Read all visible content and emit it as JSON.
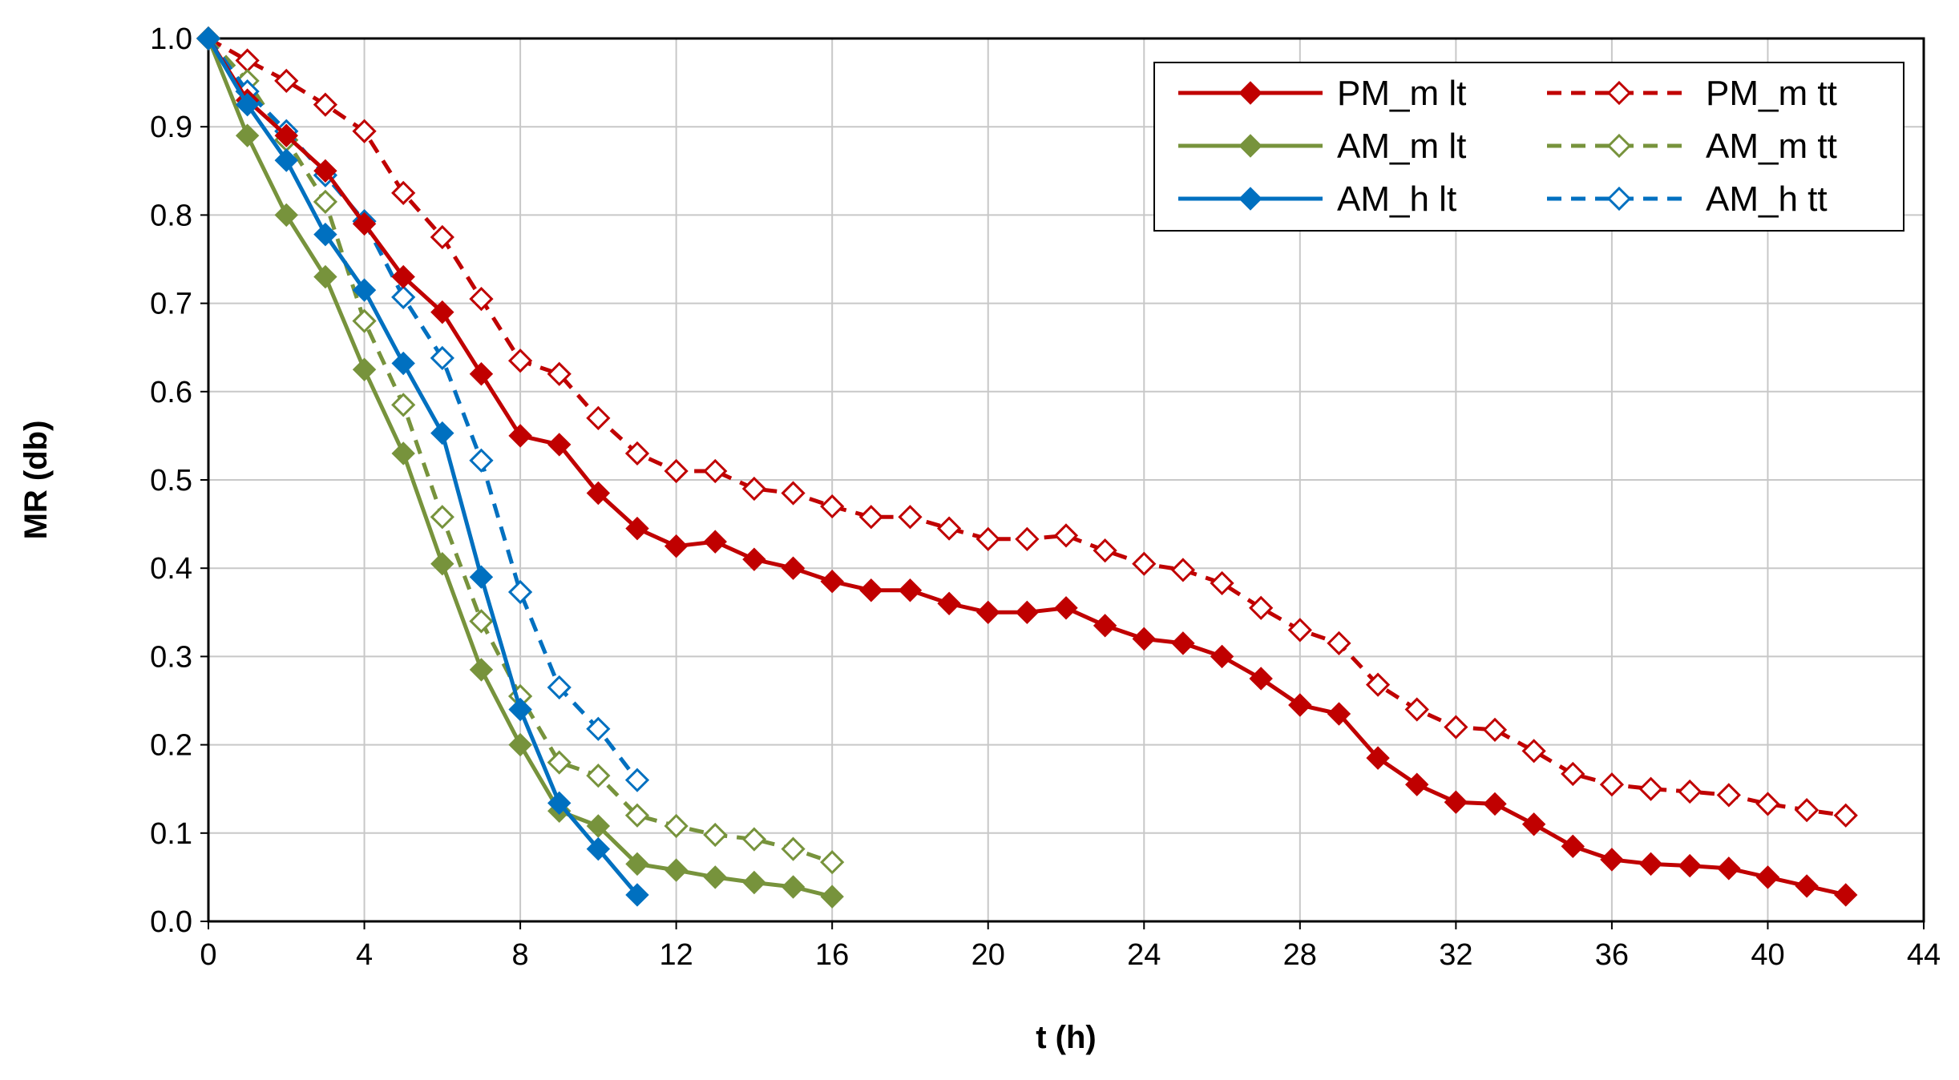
{
  "chart_data": {
    "type": "line",
    "title": "",
    "xlabel": "t (h)",
    "ylabel": "MR (db)",
    "xlim": [
      0,
      44
    ],
    "ylim": [
      0,
      1.0
    ],
    "xticks": [
      "0",
      "4",
      "8",
      "12",
      "16",
      "20",
      "24",
      "28",
      "32",
      "36",
      "40",
      "44"
    ],
    "yticks": [
      "0.0",
      "0.1",
      "0.2",
      "0.3",
      "0.4",
      "0.5",
      "0.6",
      "0.7",
      "0.8",
      "0.9",
      "1.0"
    ],
    "grid": true,
    "legend_position": "top-right",
    "series": [
      {
        "name": "PM_m lt",
        "color": "#c00000",
        "line_style": "solid",
        "marker": "filled-diamond",
        "x": [
          0,
          1,
          2,
          3,
          4,
          5,
          6,
          7,
          8,
          9,
          10,
          11,
          12,
          13,
          14,
          15,
          16,
          17,
          18,
          19,
          20,
          21,
          22,
          23,
          24,
          25,
          26,
          27,
          28,
          29,
          30,
          31,
          32,
          33,
          34,
          35,
          36,
          37,
          38,
          39,
          40,
          41,
          42
        ],
        "y": [
          1.0,
          0.93,
          0.89,
          0.85,
          0.79,
          0.73,
          0.69,
          0.62,
          0.55,
          0.54,
          0.485,
          0.445,
          0.425,
          0.43,
          0.41,
          0.4,
          0.385,
          0.375,
          0.375,
          0.36,
          0.35,
          0.35,
          0.355,
          0.335,
          0.32,
          0.315,
          0.3,
          0.275,
          0.245,
          0.235,
          0.185,
          0.155,
          0.135,
          0.133,
          0.11,
          0.085,
          0.07,
          0.065,
          0.063,
          0.06,
          0.05,
          0.04,
          0.03
        ]
      },
      {
        "name": "AM_m lt",
        "color": "#77933c",
        "line_style": "solid",
        "marker": "filled-diamond",
        "x": [
          0,
          1,
          2,
          3,
          4,
          5,
          6,
          7,
          8,
          9,
          10,
          11,
          12,
          13,
          14,
          15,
          16
        ],
        "y": [
          1.0,
          0.89,
          0.8,
          0.73,
          0.625,
          0.53,
          0.405,
          0.285,
          0.2,
          0.125,
          0.108,
          0.065,
          0.058,
          0.05,
          0.044,
          0.039,
          0.028
        ]
      },
      {
        "name": "AM_h lt",
        "color": "#0070c0",
        "line_style": "solid",
        "marker": "filled-diamond",
        "x": [
          0,
          1,
          2,
          3,
          4,
          5,
          6,
          7,
          8,
          9,
          10,
          11
        ],
        "y": [
          1.0,
          0.925,
          0.862,
          0.778,
          0.715,
          0.632,
          0.553,
          0.39,
          0.24,
          0.134,
          0.082,
          0.03
        ]
      },
      {
        "name": "PM_m tt",
        "color": "#c00000",
        "line_style": "dashed",
        "marker": "open-diamond",
        "x": [
          0,
          1,
          2,
          3,
          4,
          5,
          6,
          7,
          8,
          9,
          10,
          11,
          12,
          13,
          14,
          15,
          16,
          17,
          18,
          19,
          20,
          21,
          22,
          23,
          24,
          25,
          26,
          27,
          28,
          29,
          30,
          31,
          32,
          33,
          34,
          35,
          36,
          37,
          38,
          39,
          40,
          41,
          42
        ],
        "y": [
          1.0,
          0.975,
          0.952,
          0.925,
          0.895,
          0.825,
          0.775,
          0.705,
          0.635,
          0.62,
          0.57,
          0.53,
          0.51,
          0.51,
          0.49,
          0.485,
          0.47,
          0.458,
          0.458,
          0.445,
          0.433,
          0.433,
          0.437,
          0.42,
          0.405,
          0.398,
          0.383,
          0.355,
          0.33,
          0.315,
          0.268,
          0.24,
          0.22,
          0.217,
          0.193,
          0.167,
          0.155,
          0.15,
          0.147,
          0.143,
          0.133,
          0.126,
          0.12
        ]
      },
      {
        "name": "AM_m tt",
        "color": "#77933c",
        "line_style": "dashed",
        "marker": "open-diamond",
        "x": [
          0,
          1,
          2,
          3,
          4,
          5,
          6,
          7,
          8,
          9,
          10,
          11,
          12,
          13,
          14,
          15,
          16
        ],
        "y": [
          1.0,
          0.952,
          0.885,
          0.815,
          0.68,
          0.585,
          0.458,
          0.34,
          0.255,
          0.18,
          0.165,
          0.12,
          0.108,
          0.098,
          0.093,
          0.082,
          0.067
        ]
      },
      {
        "name": "AM_h tt",
        "color": "#0070c0",
        "line_style": "dashed",
        "marker": "open-diamond",
        "x": [
          0,
          1,
          2,
          3,
          4,
          5,
          6,
          7,
          8,
          9,
          10,
          11
        ],
        "y": [
          1.0,
          0.94,
          0.895,
          0.845,
          0.793,
          0.707,
          0.638,
          0.522,
          0.373,
          0.265,
          0.218,
          0.16
        ]
      }
    ]
  }
}
